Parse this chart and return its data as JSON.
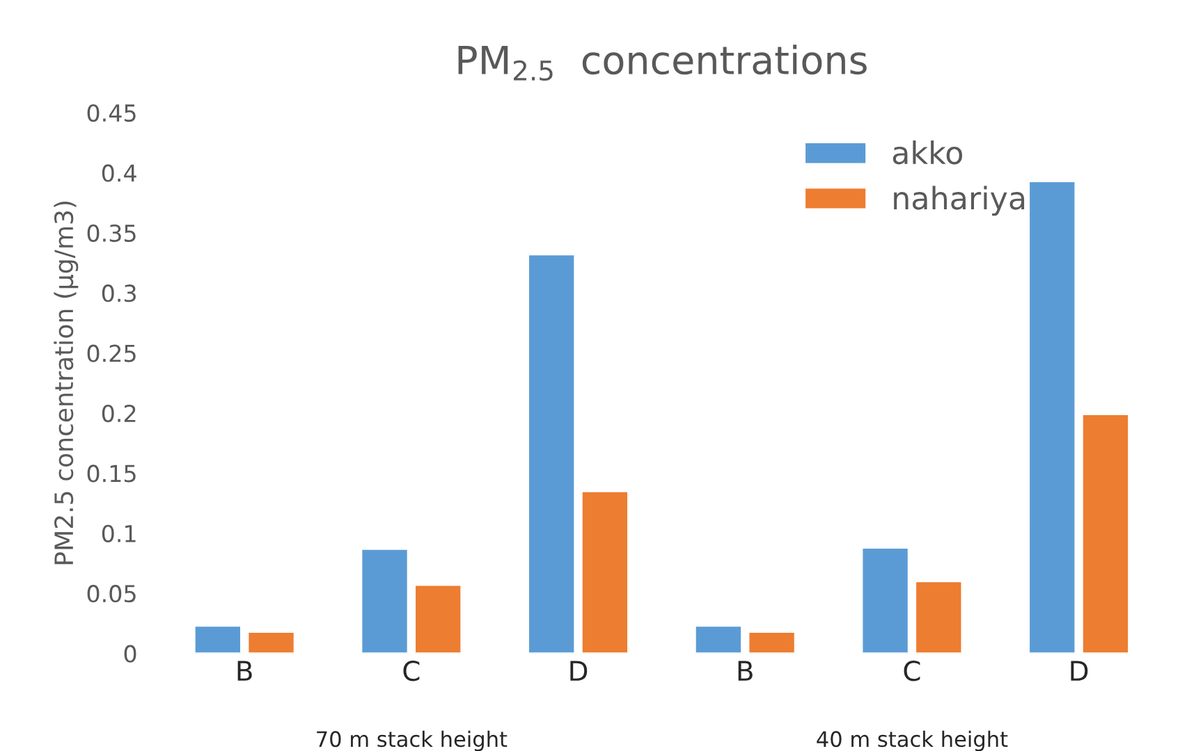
{
  "chart_data": {
    "type": "bar",
    "title": "PM$_{2.5}$  concentrations",
    "ylabel": "PM2.5 concentration (µg/m3)",
    "categories": [
      "B",
      "C",
      "D",
      "B",
      "C",
      "D"
    ],
    "series": [
      {
        "name": "akko",
        "color": "#5b9bd5",
        "values": [
          0.023,
          0.087,
          0.332,
          0.023,
          0.088,
          0.393
        ]
      },
      {
        "name": "nahariya",
        "color": "#ed7d31",
        "values": [
          0.018,
          0.057,
          0.135,
          0.018,
          0.06,
          0.199
        ]
      }
    ],
    "annotations": [
      "70 m stack height",
      "40 m stack height"
    ],
    "ylim": [
      0,
      0.45
    ],
    "yticks": [
      0,
      0.05,
      0.1,
      0.15,
      0.2,
      0.25,
      0.3,
      0.35,
      0.4,
      0.45
    ],
    "grid": false,
    "legend": "top right"
  }
}
